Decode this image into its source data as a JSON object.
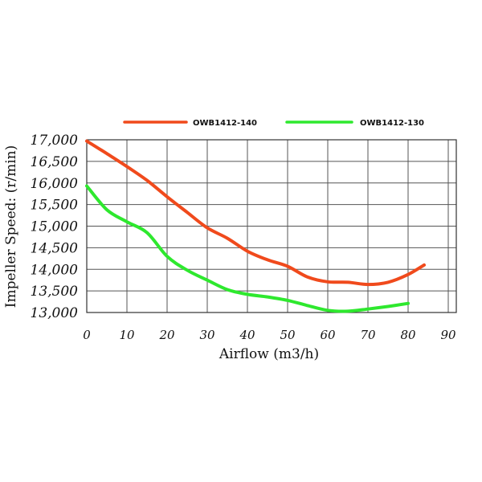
{
  "chart_data": {
    "type": "line",
    "xlabel": "Airflow (m3/h)",
    "ylabel": "Impeller Speed: (r/min)",
    "xlim": [
      0,
      90
    ],
    "ylim": [
      13000,
      17000
    ],
    "x_ticks": [
      "0",
      "10",
      "20",
      "30",
      "40",
      "50",
      "60",
      "70",
      "80",
      "90"
    ],
    "y_ticks": [
      "13,000",
      "13,500",
      "14,000",
      "14,500",
      "15,000",
      "15,500",
      "16,000",
      "16,500",
      "17,000"
    ],
    "grid": true,
    "legend_position": "top",
    "series": [
      {
        "name": "OWB1412-140",
        "color": "#f04a1c",
        "x": [
          0,
          5,
          10,
          15,
          20,
          25,
          30,
          35,
          40,
          45,
          50,
          55,
          60,
          65,
          70,
          75,
          80,
          84
        ],
        "y": [
          16970,
          16680,
          16380,
          16060,
          15680,
          15320,
          14960,
          14720,
          14420,
          14220,
          14070,
          13820,
          13710,
          13700,
          13650,
          13700,
          13880,
          14100
        ]
      },
      {
        "name": "OWB1412-130",
        "color": "#2ee82e",
        "x": [
          0,
          5,
          10,
          15,
          20,
          25,
          30,
          35,
          40,
          45,
          50,
          55,
          60,
          65,
          70,
          75,
          80
        ],
        "y": [
          15930,
          15380,
          15100,
          14850,
          14300,
          13980,
          13750,
          13530,
          13420,
          13360,
          13280,
          13160,
          13050,
          13030,
          13080,
          13140,
          13210
        ]
      }
    ]
  }
}
